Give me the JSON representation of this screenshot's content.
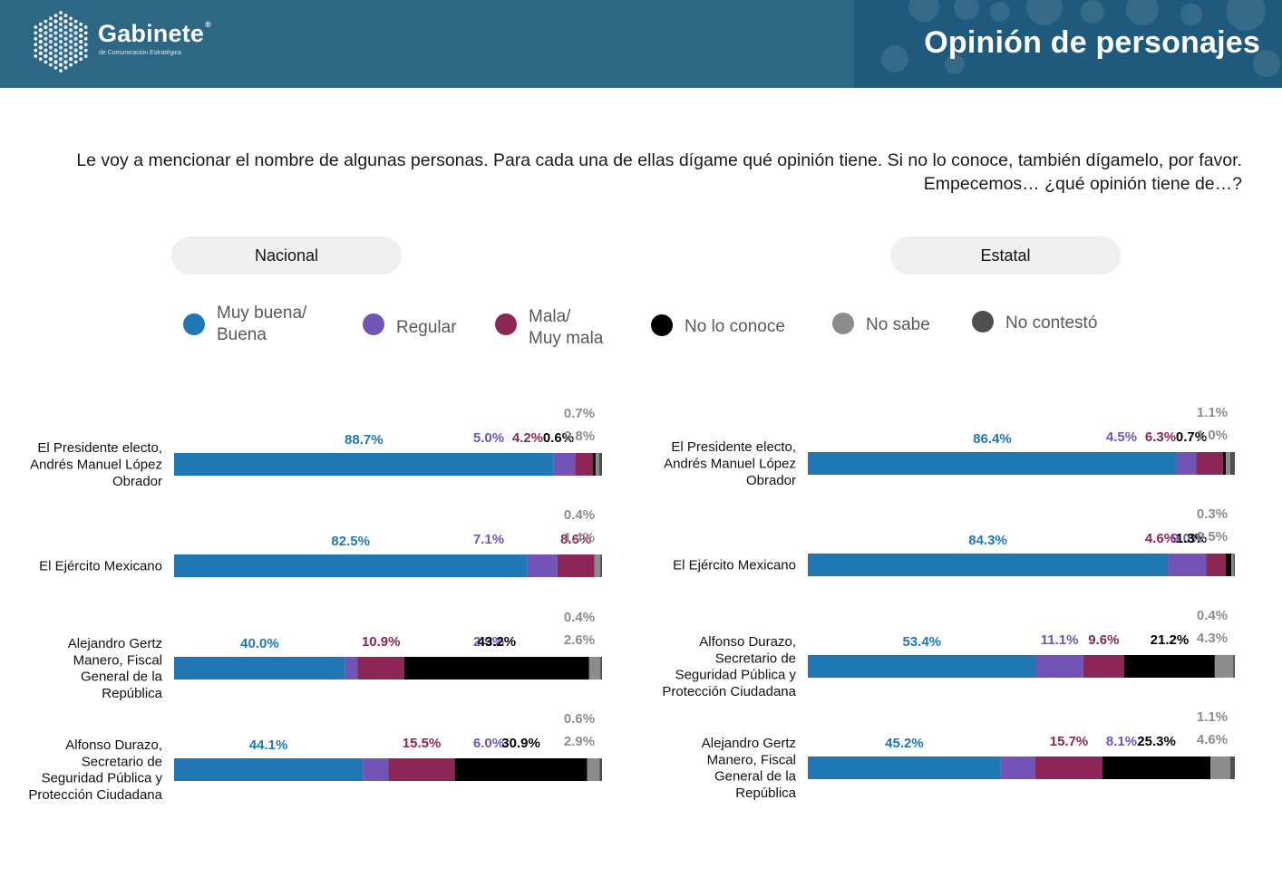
{
  "header": {
    "logo_name": "Gabinete",
    "logo_registered": "®",
    "logo_subtitle": "de Comunicación Estratégica",
    "title": "Opinión de personajes"
  },
  "question": "Le voy a mencionar el nombre de algunas personas. Para cada una de ellas dígame qué opinión tiene. Si no lo conoce, también dígamelo, por favor. Empecemos… ¿qué opinión tiene de…?",
  "panels": {
    "left_label": "Nacional",
    "right_label": "Estatal"
  },
  "legend": [
    {
      "label": "Muy buena/\nBuena",
      "color": "#2077b6"
    },
    {
      "label": "Regular",
      "color": "#7154b6"
    },
    {
      "label": "Mala/\nMuy mala",
      "color": "#8b2657"
    },
    {
      "label": "No lo conoce",
      "color": "#000000"
    },
    {
      "label": "No sabe",
      "color": "#8c8c8c"
    },
    {
      "label": "No contestó",
      "color": "#4f4f4f"
    }
  ],
  "chart_data": [
    {
      "type": "bar",
      "stacked": true,
      "orientation": "horizontal",
      "panel": "Nacional",
      "categories": [
        "El Presidente electo,\nAndrés Manuel López\nObrador",
        "El Ejército Mexicano",
        "Alejandro Gertz\nManero, Fiscal\nGeneral de la\nRepública",
        "Alfonso Durazo,\nSecretario de\nSeguridad Pública y\nProtección Ciudadana"
      ],
      "series": [
        {
          "name": "Muy buena/ Buena",
          "color": "#2077b6",
          "values": [
            88.7,
            82.5,
            40.0,
            44.1
          ],
          "labels": [
            "88.7%",
            "82.5%",
            "40.0%",
            "44.1%"
          ]
        },
        {
          "name": "Regular",
          "color": "#7154b6",
          "values": [
            5.0,
            7.1,
            2.9,
            6.0
          ],
          "labels": [
            "5.0%",
            "7.1%",
            "2.9%",
            "6.0%"
          ]
        },
        {
          "name": "Mala/ Muy mala",
          "color": "#8b2657",
          "values": [
            4.2,
            8.6,
            10.9,
            15.5
          ],
          "labels": [
            "4.2%",
            "8.6%",
            "10.9%",
            "15.5%"
          ]
        },
        {
          "name": "No lo conoce",
          "color": "#000000",
          "values": [
            0.6,
            0,
            43.2,
            30.9
          ],
          "labels": [
            "0.6%",
            "",
            "43.2%",
            "30.9%"
          ]
        },
        {
          "name": "No sabe",
          "color": "#8c8c8c",
          "values": [
            0.8,
            1.4,
            2.6,
            2.9
          ],
          "labels": [
            "0.8%",
            "1.4%",
            "2.6%",
            "2.9%"
          ]
        },
        {
          "name": "No contestó",
          "color": "#4f4f4f",
          "values": [
            0.7,
            0.4,
            0.4,
            0.6
          ],
          "labels": [
            "0.7%",
            "0.4%",
            "0.4%",
            "0.6%"
          ]
        }
      ]
    },
    {
      "type": "bar",
      "stacked": true,
      "orientation": "horizontal",
      "panel": "Estatal",
      "categories": [
        "El Presidente electo,\nAndrés Manuel López\nObrador",
        "El Ejército Mexicano",
        "Alfonso Durazo,\nSecretario de\nSeguridad Pública y\nProtección Ciudadana",
        "Alejandro Gertz\nManero, Fiscal\nGeneral de la\nRepública"
      ],
      "series": [
        {
          "name": "Muy buena/ Buena",
          "color": "#2077b6",
          "values": [
            86.4,
            84.3,
            53.4,
            45.2
          ],
          "labels": [
            "86.4%",
            "84.3%",
            "53.4%",
            "45.2%"
          ]
        },
        {
          "name": "Regular",
          "color": "#7154b6",
          "values": [
            4.5,
            9.0,
            11.1,
            8.1
          ],
          "labels": [
            "4.5%",
            "9.0%",
            "11.1%",
            "8.1%"
          ]
        },
        {
          "name": "Mala/ Muy mala",
          "color": "#8b2657",
          "values": [
            6.3,
            4.6,
            9.6,
            15.7
          ],
          "labels": [
            "6.3%",
            "4.6%",
            "9.6%",
            "15.7%"
          ]
        },
        {
          "name": "No lo conoce",
          "color": "#000000",
          "values": [
            0.7,
            1.3,
            21.2,
            25.3
          ],
          "labels": [
            "0.7%",
            "1.3%",
            "21.2%",
            "25.3%"
          ]
        },
        {
          "name": "No sabe",
          "color": "#8c8c8c",
          "values": [
            1.0,
            0.5,
            4.3,
            4.6
          ],
          "labels": [
            "1.0%",
            "0.5%",
            "4.3%",
            "4.6%"
          ]
        },
        {
          "name": "No contestó",
          "color": "#4f4f4f",
          "values": [
            1.1,
            0.3,
            0.4,
            1.1
          ],
          "labels": [
            "1.1%",
            "0.3%",
            "0.4%",
            "1.1%"
          ]
        }
      ]
    }
  ]
}
